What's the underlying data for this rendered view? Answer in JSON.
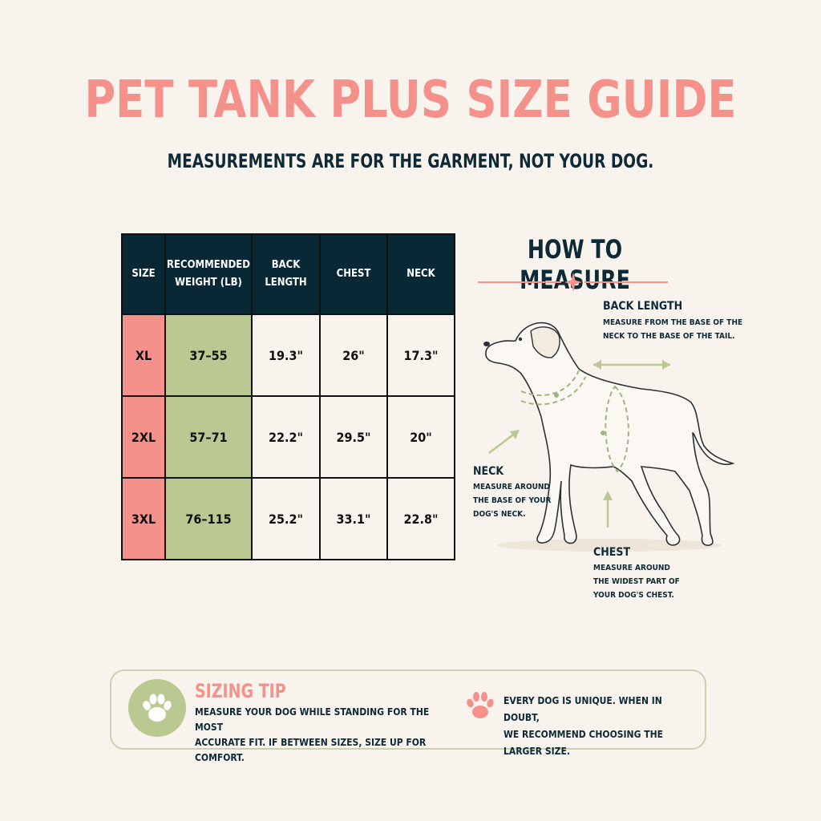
{
  "header": {
    "title": "PET TANK PLUS SIZE GUIDE",
    "subtitle": "MEASUREMENTS ARE FOR THE GARMENT, NOT YOUR DOG."
  },
  "size_table": {
    "headers": {
      "size": "SIZE",
      "weight_line1": "RECOMMENDED",
      "weight_line2": "WEIGHT (LB)",
      "back_line1": "BACK",
      "back_line2": "LENGTH",
      "chest": "CHEST",
      "neck": "NECK"
    },
    "rows": [
      {
        "size": "XL",
        "weight": "37–55",
        "back_length": "19.3\"",
        "chest": "26\"",
        "neck": "17.3\""
      },
      {
        "size": "2XL",
        "weight": "57–71",
        "back_length": "22.2\"",
        "chest": "29.5\"",
        "neck": "20\""
      },
      {
        "size": "3XL",
        "weight": "76–115",
        "back_length": "25.2\"",
        "chest": "33.1\"",
        "neck": "22.8\""
      }
    ]
  },
  "how_to_measure": {
    "title": "HOW TO MEASURE",
    "back_length": {
      "title": "BACK LENGTH",
      "line1": "MEASURE FROM THE BASE OF THE",
      "line2": "NECK TO THE BASE OF THE TAIL."
    },
    "neck": {
      "title": "NECK",
      "line1": "MEASURE AROUND",
      "line2": "THE BASE OF YOUR",
      "line3": "DOG'S NECK."
    },
    "chest": {
      "title": "CHEST",
      "line1": "MEASURE AROUND",
      "line2": "THE WIDEST PART OF",
      "line3": "YOUR DOG'S CHEST."
    }
  },
  "sizing_tip": {
    "title": "SIZING TIP",
    "line1": "MEASURE YOUR DOG WHILE STANDING FOR THE MOST",
    "line2": "ACCURATE FIT. IF BETWEEN SIZES, SIZE UP FOR COMFORT.",
    "right_line1": "EVERY DOG IS UNIQUE. WHEN IN DOUBT,",
    "right_line2": "WE RECOMMEND CHOOSING THE LARGER SIZE."
  },
  "colors": {
    "accent_coral": "#f4918a",
    "accent_green": "#b9c991",
    "navy": "#082836",
    "background": "#f8f3ec"
  },
  "icons": [
    "paw-print-icon",
    "sparkle-divider-icon",
    "dog-illustration"
  ]
}
